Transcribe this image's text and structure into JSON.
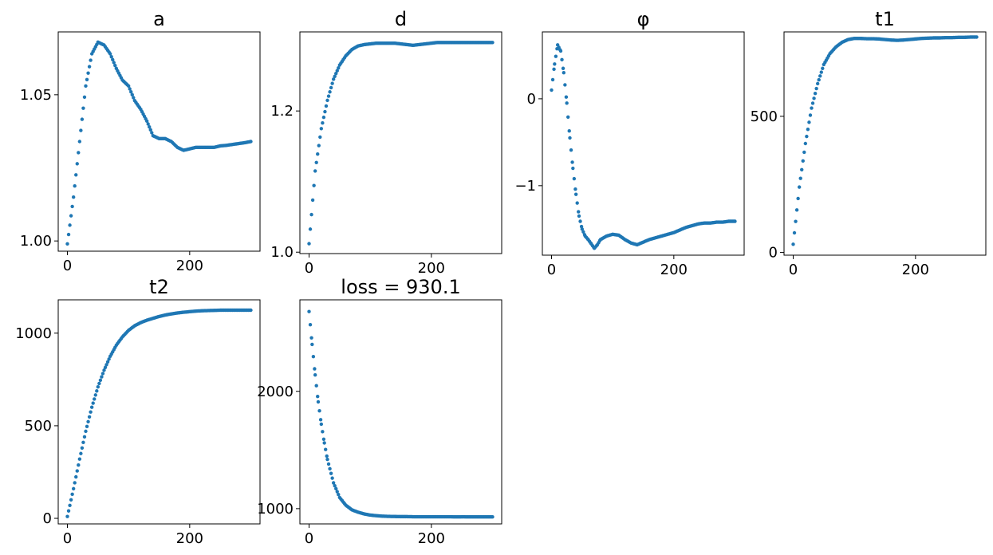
{
  "chart_data": [
    {
      "type": "scatter",
      "title": "a",
      "xlabel": "",
      "ylabel": "",
      "xlim": [
        -15,
        315
      ],
      "ylim": [
        0.9965,
        1.0715
      ],
      "xticks": [
        0,
        200
      ],
      "yticks": [
        1.0,
        1.05
      ],
      "ytick_labels": [
        "1.00",
        "1.05"
      ],
      "color": "#1f77b4",
      "x_points": [
        0,
        10,
        20,
        30,
        40,
        50,
        60,
        70,
        80,
        90,
        100,
        110,
        120,
        130,
        140,
        150,
        160,
        170,
        180,
        190,
        200,
        210,
        220,
        230,
        240,
        250,
        260,
        270,
        280,
        290,
        300
      ],
      "y_points": [
        0.999,
        1.015,
        1.034,
        1.053,
        1.064,
        1.068,
        1.067,
        1.064,
        1.059,
        1.055,
        1.053,
        1.048,
        1.045,
        1.041,
        1.036,
        1.035,
        1.035,
        1.034,
        1.032,
        1.031,
        1.0315,
        1.032,
        1.032,
        1.032,
        1.032,
        1.0325,
        1.0327,
        1.033,
        1.0333,
        1.0336,
        1.034
      ]
    },
    {
      "type": "scatter",
      "title": "d",
      "xlabel": "",
      "ylabel": "",
      "xlim": [
        -15,
        315
      ],
      "ylim": [
        0.998,
        1.312
      ],
      "xticks": [
        0,
        200
      ],
      "yticks": [
        1.0,
        1.2
      ],
      "ytick_labels": [
        "1.0",
        "1.2"
      ],
      "color": "#1f77b4",
      "x_points": [
        0,
        10,
        20,
        30,
        40,
        50,
        60,
        70,
        80,
        90,
        100,
        110,
        120,
        130,
        140,
        150,
        160,
        170,
        180,
        190,
        200,
        210,
        220,
        230,
        240,
        250,
        260,
        270,
        280,
        290,
        300
      ],
      "y_points": [
        1.012,
        1.115,
        1.175,
        1.215,
        1.245,
        1.265,
        1.278,
        1.287,
        1.292,
        1.294,
        1.295,
        1.296,
        1.296,
        1.296,
        1.296,
        1.295,
        1.294,
        1.293,
        1.294,
        1.295,
        1.296,
        1.297,
        1.297,
        1.297,
        1.297,
        1.297,
        1.297,
        1.297,
        1.297,
        1.297,
        1.297
      ]
    },
    {
      "type": "scatter",
      "title": "φ",
      "xlabel": "",
      "ylabel": "",
      "xlim": [
        -15,
        315
      ],
      "ylim": [
        -1.8,
        0.77
      ],
      "xticks": [
        0,
        200
      ],
      "yticks": [
        -1,
        0
      ],
      "ytick_labels": [
        "−1",
        "0"
      ],
      "color": "#1f77b4",
      "x_points": [
        0,
        5,
        10,
        15,
        20,
        25,
        30,
        35,
        40,
        45,
        50,
        55,
        60,
        65,
        70,
        75,
        80,
        90,
        100,
        110,
        120,
        130,
        140,
        150,
        160,
        170,
        180,
        190,
        200,
        210,
        220,
        230,
        240,
        250,
        260,
        270,
        280,
        290,
        300
      ],
      "y_points": [
        0.1,
        0.4,
        0.62,
        0.55,
        0.3,
        -0.05,
        -0.45,
        -0.8,
        -1.1,
        -1.35,
        -1.5,
        -1.58,
        -1.62,
        -1.67,
        -1.72,
        -1.68,
        -1.62,
        -1.58,
        -1.56,
        -1.57,
        -1.62,
        -1.66,
        -1.68,
        -1.65,
        -1.62,
        -1.6,
        -1.58,
        -1.56,
        -1.54,
        -1.51,
        -1.48,
        -1.46,
        -1.44,
        -1.43,
        -1.43,
        -1.42,
        -1.42,
        -1.41,
        -1.41
      ]
    },
    {
      "type": "scatter",
      "title": "t1",
      "xlabel": "",
      "ylabel": "",
      "xlim": [
        -15,
        315
      ],
      "ylim": [
        -10,
        810
      ],
      "xticks": [
        0,
        200
      ],
      "yticks": [
        0,
        500
      ],
      "ytick_labels": [
        "0",
        "500"
      ],
      "color": "#1f77b4",
      "x_points": [
        0,
        10,
        20,
        30,
        40,
        50,
        60,
        70,
        80,
        90,
        100,
        110,
        120,
        130,
        140,
        150,
        160,
        170,
        180,
        190,
        200,
        210,
        220,
        230,
        240,
        250,
        260,
        270,
        280,
        290,
        300
      ],
      "y_points": [
        30,
        240,
        400,
        530,
        620,
        690,
        730,
        755,
        772,
        782,
        786,
        786,
        785,
        785,
        784,
        782,
        780,
        779,
        780,
        782,
        784,
        786,
        787,
        788,
        788,
        789,
        789,
        790,
        790,
        791,
        791
      ]
    },
    {
      "type": "scatter",
      "title": "t2",
      "xlabel": "",
      "ylabel": "",
      "xlim": [
        -15,
        315
      ],
      "ylim": [
        -30,
        1180
      ],
      "xticks": [
        0,
        200
      ],
      "yticks": [
        0,
        500,
        1000
      ],
      "ytick_labels": [
        "0",
        "500",
        "1000"
      ],
      "color": "#1f77b4",
      "x_points": [
        0,
        10,
        20,
        30,
        40,
        50,
        60,
        70,
        80,
        90,
        100,
        110,
        120,
        130,
        140,
        150,
        160,
        170,
        180,
        190,
        200,
        210,
        220,
        230,
        240,
        250,
        260,
        270,
        280,
        290,
        300
      ],
      "y_points": [
        10,
        160,
        320,
        470,
        600,
        710,
        800,
        875,
        935,
        980,
        1015,
        1040,
        1057,
        1070,
        1080,
        1090,
        1098,
        1104,
        1109,
        1113,
        1116,
        1119,
        1121,
        1122,
        1123,
        1124,
        1124,
        1124,
        1124,
        1124,
        1124
      ]
    },
    {
      "type": "scatter",
      "title": "loss = 930.1",
      "xlabel": "",
      "ylabel": "",
      "xlim": [
        -15,
        315
      ],
      "ylim": [
        870,
        2780
      ],
      "xticks": [
        0,
        200
      ],
      "yticks": [
        1000,
        2000
      ],
      "ytick_labels": [
        "1000",
        "2000"
      ],
      "color": "#1f77b4",
      "x_points": [
        0,
        5,
        10,
        15,
        20,
        25,
        30,
        40,
        50,
        60,
        70,
        80,
        90,
        100,
        110,
        120,
        130,
        140,
        150,
        160,
        170,
        180,
        190,
        200,
        210,
        220,
        230,
        240,
        250,
        260,
        270,
        280,
        290,
        300
      ],
      "y_points": [
        2680,
        2400,
        2140,
        1910,
        1720,
        1560,
        1420,
        1220,
        1095,
        1030,
        990,
        970,
        955,
        945,
        940,
        936,
        934,
        933,
        932,
        932,
        931,
        931,
        931,
        931,
        930.5,
        930.5,
        930.5,
        930,
        930.3,
        930.2,
        930.1,
        930.1,
        930.1,
        930.1
      ]
    }
  ]
}
